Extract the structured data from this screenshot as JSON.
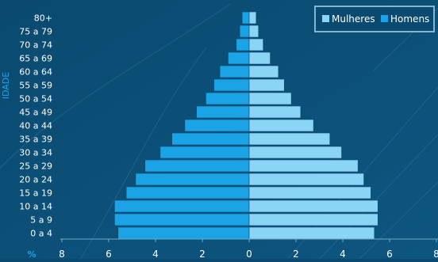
{
  "chart_data": {
    "type": "bar",
    "orientation": "horizontal",
    "layout": "population-pyramid",
    "categories": [
      "0 a 4",
      "5 a 9",
      "10 a 14",
      "15 a 19",
      "20 a 24",
      "25 a 29",
      "30 a 34",
      "35 a 39",
      "40 a 44",
      "45 a 49",
      "50 a 54",
      "55 a 59",
      "60 a 64",
      "65 a 69",
      "70 a 74",
      "75 a 79",
      "80+"
    ],
    "series": [
      {
        "name": "Homens",
        "side": "left",
        "color": "#1aa3e6",
        "values": [
          5.6,
          5.75,
          5.75,
          5.25,
          4.85,
          4.45,
          3.8,
          3.3,
          2.75,
          2.25,
          1.85,
          1.5,
          1.25,
          0.9,
          0.55,
          0.4,
          0.3
        ]
      },
      {
        "name": "Mulheres",
        "side": "right",
        "color": "#8ad4f6",
        "values": [
          5.35,
          5.5,
          5.5,
          5.2,
          4.9,
          4.65,
          3.95,
          3.45,
          2.75,
          2.2,
          1.8,
          1.5,
          1.25,
          0.9,
          0.6,
          0.4,
          0.3
        ]
      }
    ],
    "ylabel": "IDADE",
    "xlabel": "%",
    "x_ticks": [
      "8",
      "6",
      "4",
      "2",
      "0",
      "2",
      "4",
      "6",
      "8"
    ],
    "xlim": [
      -8,
      8
    ],
    "grid": false,
    "legend_position": "top-right",
    "legend_order": [
      "Mulheres",
      "Homens"
    ]
  }
}
